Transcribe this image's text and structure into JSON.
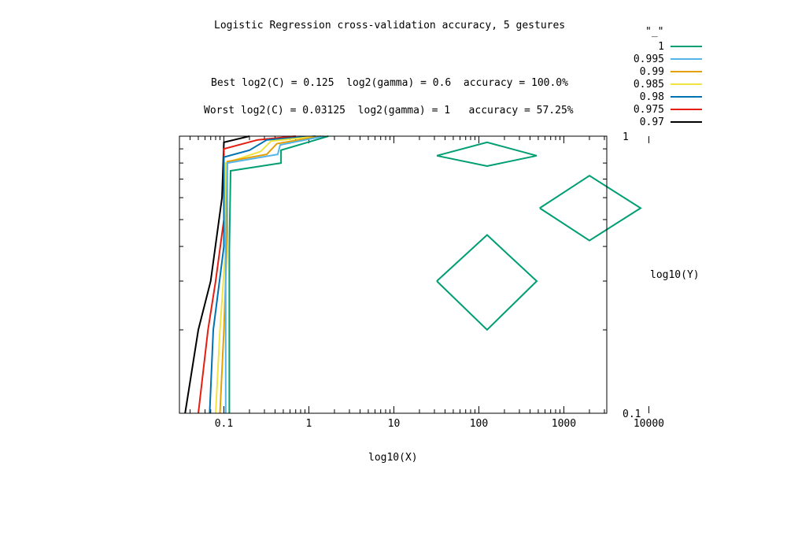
{
  "chart_data": {
    "type": "line",
    "subtype": "contour",
    "title": "Logistic Regression cross-validation accuracy, 5 gestures",
    "annotations": {
      "best": "Best log2(C) = 0.125  log2(gamma) = 0.6  accuracy = 100.0%",
      "worst": "Worst log2(C) = 0.03125  log2(gamma) = 1   accuracy = 57.25%"
    },
    "xlabel": "log10(X)",
    "ylabel": "log10(Y)",
    "xscale": "log",
    "yscale": "log",
    "xlim": [
      0.03,
      3200
    ],
    "ylim": [
      0.1,
      1
    ],
    "x_tick_labels": [
      "0.1",
      "1",
      "10",
      "100",
      "1000",
      "10000"
    ],
    "x_tick_values": [
      0.1,
      1,
      10,
      100,
      1000,
      10000
    ],
    "y_tick_labels": [
      "0.1",
      "1"
    ],
    "y_tick_values": [
      0.1,
      1
    ],
    "legend_title": "\"_\"",
    "legend_position": "top-right outside",
    "series": [
      {
        "name": "1",
        "color": "#009e73",
        "points": [
          [
            0.116,
            0.1
          ],
          [
            0.116,
            0.39
          ],
          [
            0.12,
            0.75
          ],
          [
            0.47,
            0.8
          ],
          [
            0.47,
            0.89
          ],
          [
            1.7,
            1.0
          ]
        ],
        "closed_contours": [
          [
            [
              32,
              0.85
            ],
            [
              125,
              0.95
            ],
            [
              480,
              0.85
            ],
            [
              125,
              0.78
            ],
            [
              32,
              0.85
            ]
          ],
          [
            [
              520,
              0.55
            ],
            [
              2000,
              0.72
            ],
            [
              8000,
              0.55
            ],
            [
              2000,
              0.42
            ],
            [
              520,
              0.55
            ]
          ],
          [
            [
              32,
              0.3
            ],
            [
              125,
              0.44
            ],
            [
              480,
              0.3
            ],
            [
              125,
              0.2
            ],
            [
              32,
              0.3
            ]
          ]
        ]
      },
      {
        "name": "0.995",
        "color": "#56b4e9",
        "points": [
          [
            0.105,
            0.1
          ],
          [
            0.105,
            0.39
          ],
          [
            0.11,
            0.8
          ],
          [
            0.43,
            0.86
          ],
          [
            0.46,
            0.93
          ],
          [
            1.5,
            1.0
          ]
        ]
      },
      {
        "name": "0.99",
        "color": "#e69f00",
        "points": [
          [
            0.09,
            0.1
          ],
          [
            0.1,
            0.2
          ],
          [
            0.11,
            0.45
          ],
          [
            0.11,
            0.81
          ],
          [
            0.32,
            0.86
          ],
          [
            0.42,
            0.94
          ],
          [
            1.4,
            1.0
          ]
        ]
      },
      {
        "name": "0.985",
        "color": "#f0e442",
        "points": [
          [
            0.08,
            0.1
          ],
          [
            0.09,
            0.2
          ],
          [
            0.105,
            0.4
          ],
          [
            0.105,
            0.8
          ],
          [
            0.27,
            0.88
          ],
          [
            0.36,
            0.96
          ],
          [
            1.3,
            1.0
          ]
        ]
      },
      {
        "name": "0.98",
        "color": "#0072b2",
        "points": [
          [
            0.068,
            0.1
          ],
          [
            0.075,
            0.2
          ],
          [
            0.1,
            0.4
          ],
          [
            0.1,
            0.84
          ],
          [
            0.2,
            0.89
          ],
          [
            0.32,
            0.97
          ],
          [
            1.2,
            1.0
          ]
        ]
      },
      {
        "name": "0.975",
        "color": "#e51e10",
        "points": [
          [
            0.05,
            0.1
          ],
          [
            0.065,
            0.2
          ],
          [
            0.08,
            0.3
          ],
          [
            0.1,
            0.5
          ],
          [
            0.1,
            0.9
          ],
          [
            0.25,
            0.97
          ],
          [
            0.7,
            1.0
          ]
        ]
      },
      {
        "name": "0.97",
        "color": "#000000",
        "points": [
          [
            0.035,
            0.1
          ],
          [
            0.05,
            0.2
          ],
          [
            0.07,
            0.3
          ],
          [
            0.095,
            0.6
          ],
          [
            0.1,
            0.95
          ],
          [
            0.2,
            1.0
          ]
        ]
      }
    ]
  }
}
